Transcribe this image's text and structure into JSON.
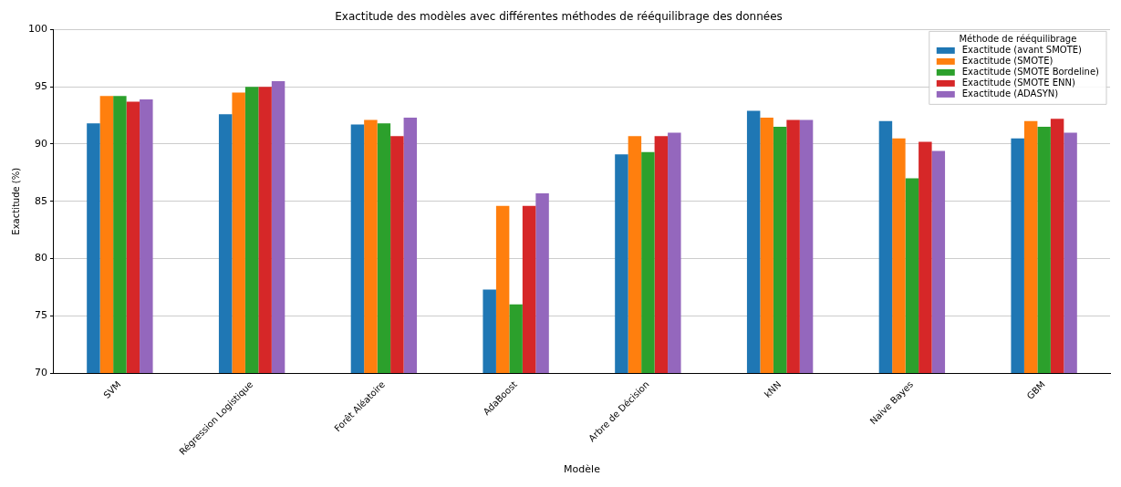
{
  "chart_data": {
    "type": "bar",
    "title": "Exactitude des modèles avec différentes méthodes de rééquilibrage des données",
    "xlabel": "Modèle",
    "ylabel": "Exactitude (%)",
    "legend_title": "Méthode de rééquilibrage",
    "legend": "top right",
    "grid": "y",
    "categories": [
      "SVM",
      "Régression Logistique",
      "Forêt Aléatoire",
      "AdaBoost",
      "Arbre de Décision",
      "kNN",
      "Naive Bayes",
      "GBM"
    ],
    "ylim": [
      70,
      100
    ],
    "yticks": [
      70,
      75,
      80,
      85,
      90,
      95,
      100
    ],
    "series": [
      {
        "name": "Exactitude (avant SMOTE)",
        "color": "#1f77b4",
        "values": [
          91.8,
          92.6,
          91.7,
          77.3,
          89.1,
          92.9,
          92.0,
          90.5
        ]
      },
      {
        "name": "Exactitude (SMOTE)",
        "color": "#ff7f0e",
        "values": [
          94.2,
          94.5,
          92.1,
          84.6,
          90.7,
          92.3,
          90.5,
          92.0
        ]
      },
      {
        "name": "Exactitude (SMOTE Bordeline)",
        "color": "#2ca02c",
        "values": [
          94.2,
          95.0,
          91.8,
          76.0,
          89.3,
          91.5,
          87.0,
          91.5
        ]
      },
      {
        "name": "Exactitude (SMOTE ENN)",
        "color": "#d62728",
        "values": [
          93.7,
          95.0,
          90.7,
          84.6,
          90.7,
          92.1,
          90.2,
          92.2
        ]
      },
      {
        "name": "Exactitude (ADASYN)",
        "color": "#9467bd",
        "values": [
          93.9,
          95.5,
          92.3,
          85.7,
          91.0,
          92.1,
          89.4,
          91.0
        ]
      }
    ]
  }
}
